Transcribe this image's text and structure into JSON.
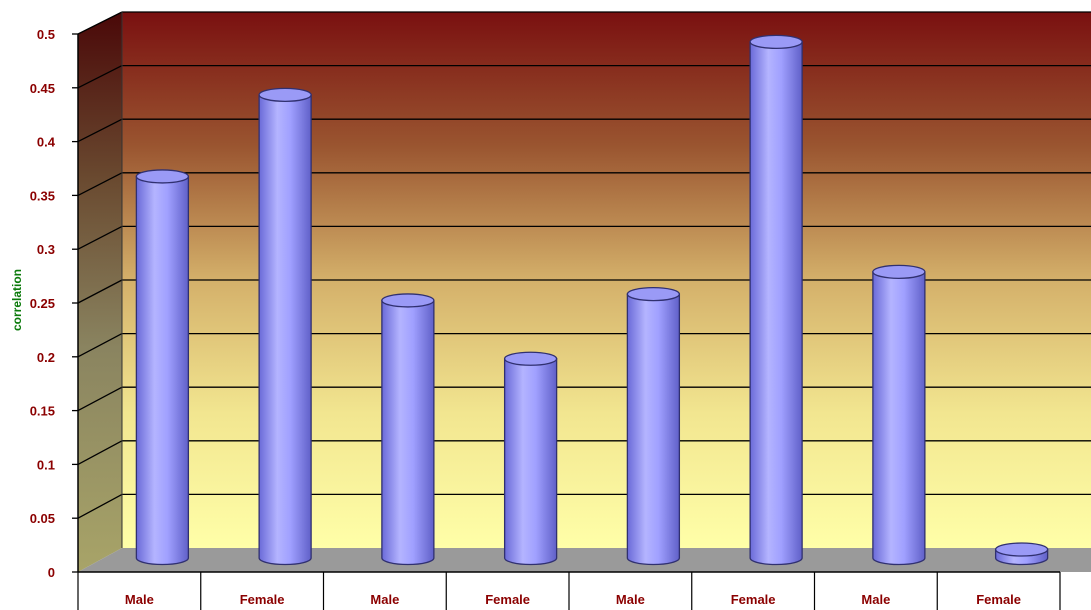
{
  "chart_data": {
    "type": "bar",
    "style": "3d-cylinder",
    "categories": [
      "Male",
      "Female",
      "Male",
      "Female",
      "Male",
      "Female",
      "Male",
      "Female"
    ],
    "values": [
      0.36,
      0.437,
      0.243,
      0.188,
      0.249,
      0.487,
      0.27,
      0.008
    ],
    "ylabel": "correlation",
    "ylim": [
      0,
      0.5
    ],
    "yticks": [
      "0",
      "0.05",
      "0.1",
      "0.15",
      "0.2",
      "0.25",
      "0.3",
      "0.35",
      "0.4",
      "0.45",
      "0.5"
    ],
    "grid": true,
    "legend": "none",
    "colors": {
      "bar": "#a8a8ff",
      "bar_edge": "#303070",
      "wall_top": "#7a1010",
      "wall_bottom": "#ffff99",
      "floor": "#9a9a9a",
      "label": "#8b0000",
      "ytitle": "#0a7a0a"
    }
  }
}
